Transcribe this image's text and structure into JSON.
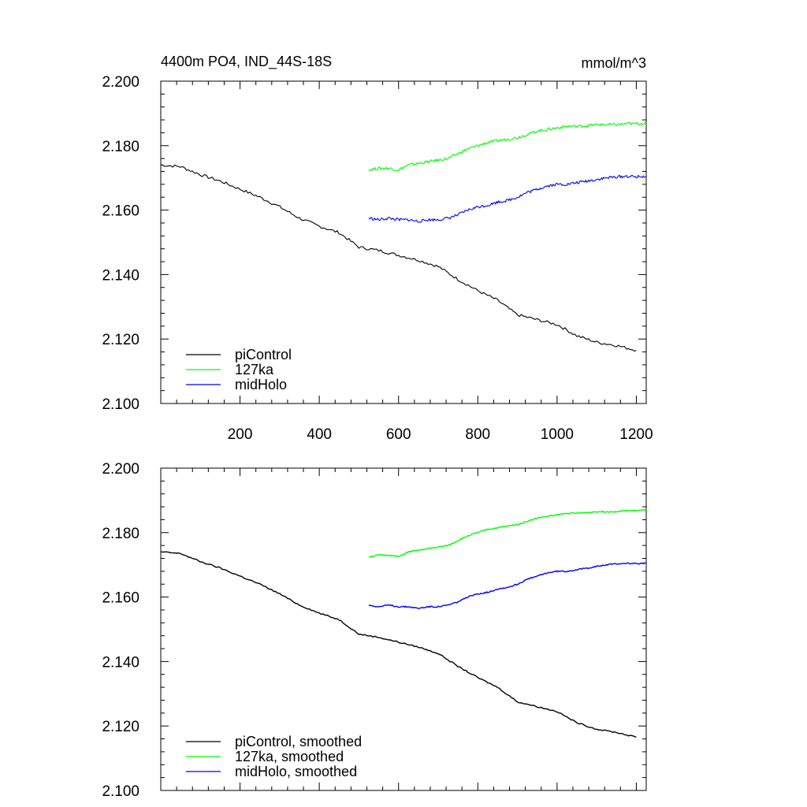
{
  "header": {
    "title": "4400m PO4, IND_44S-18S",
    "units": "mmol/m^3"
  },
  "colors": {
    "piControl": "#000000",
    "127ka": "#00ff00",
    "midHolo": "#0000ff",
    "axis": "#000000"
  },
  "chart_data": [
    {
      "type": "line",
      "panel": "top",
      "xlim": [
        0,
        1225
      ],
      "ylim": [
        2.1,
        2.2
      ],
      "x_ticks": [
        200,
        400,
        600,
        800,
        1000,
        1200
      ],
      "x_tick_labels": [
        "200",
        "400",
        "600",
        "800",
        "1000",
        "1200"
      ],
      "y_ticks": [
        2.1,
        2.12,
        2.14,
        2.16,
        2.18,
        2.2
      ],
      "y_tick_labels": [
        "2.100",
        "2.120",
        "2.140",
        "2.160",
        "2.180",
        "2.200"
      ],
      "grid": false,
      "legend_position": "bottom-left",
      "series": [
        {
          "name": "piControl",
          "color": "#000000",
          "x": [
            0,
            50,
            100,
            150,
            200,
            250,
            300,
            350,
            400,
            450,
            500,
            550,
            600,
            650,
            700,
            750,
            800,
            850,
            900,
            950,
            1000,
            1050,
            1100,
            1150,
            1200
          ],
          "y": [
            2.174,
            2.1735,
            2.171,
            2.169,
            2.1665,
            2.164,
            2.161,
            2.1575,
            2.155,
            2.153,
            2.1485,
            2.1475,
            2.146,
            2.1445,
            2.1425,
            2.1385,
            2.135,
            2.132,
            2.1275,
            2.126,
            2.1245,
            2.121,
            2.119,
            2.118,
            2.1165
          ]
        },
        {
          "name": "127ka",
          "color": "#00ff00",
          "x": [
            525,
            550,
            575,
            600,
            625,
            650,
            675,
            700,
            725,
            750,
            775,
            800,
            825,
            850,
            875,
            900,
            925,
            950,
            975,
            1000,
            1025,
            1050,
            1075,
            1100,
            1125,
            1150,
            1175,
            1200,
            1225
          ],
          "y": [
            2.1725,
            2.173,
            2.173,
            2.1725,
            2.174,
            2.1745,
            2.175,
            2.1755,
            2.176,
            2.1775,
            2.179,
            2.18,
            2.181,
            2.1815,
            2.182,
            2.1825,
            2.1835,
            2.1845,
            2.185,
            2.1855,
            2.186,
            2.186,
            2.1862,
            2.1865,
            2.1865,
            2.1865,
            2.1868,
            2.1868,
            2.187
          ]
        },
        {
          "name": "midHolo",
          "color": "#0000ff",
          "x": [
            525,
            550,
            575,
            600,
            625,
            650,
            675,
            700,
            725,
            750,
            775,
            800,
            825,
            850,
            875,
            900,
            925,
            950,
            975,
            1000,
            1025,
            1050,
            1075,
            1100,
            1125,
            1150,
            1175,
            1200,
            1225
          ],
          "y": [
            2.1575,
            2.157,
            2.1575,
            2.157,
            2.157,
            2.1565,
            2.157,
            2.157,
            2.1575,
            2.1585,
            2.16,
            2.161,
            2.1615,
            2.1625,
            2.163,
            2.164,
            2.1655,
            2.1665,
            2.1675,
            2.168,
            2.168,
            2.1685,
            2.169,
            2.1695,
            2.17,
            2.1703,
            2.1705,
            2.1703,
            2.1705
          ]
        }
      ]
    },
    {
      "type": "line",
      "panel": "bottom",
      "xlim": [
        0,
        1225
      ],
      "ylim": [
        2.1,
        2.2
      ],
      "x_ticks": [
        200,
        400,
        600,
        800,
        1000,
        1200
      ],
      "y_ticks": [
        2.1,
        2.12,
        2.14,
        2.16,
        2.18,
        2.2
      ],
      "y_tick_labels": [
        "2.100",
        "2.120",
        "2.140",
        "2.160",
        "2.180",
        "2.200"
      ],
      "grid": false,
      "legend_position": "bottom-left",
      "series": [
        {
          "name": "piControl, smoothed",
          "color": "#000000",
          "x": [
            0,
            50,
            100,
            150,
            200,
            250,
            300,
            350,
            400,
            450,
            500,
            550,
            600,
            650,
            700,
            750,
            800,
            850,
            900,
            950,
            1000,
            1050,
            1100,
            1150,
            1200
          ],
          "y": [
            2.174,
            2.1735,
            2.171,
            2.169,
            2.1665,
            2.164,
            2.161,
            2.1575,
            2.155,
            2.153,
            2.1485,
            2.1475,
            2.146,
            2.1445,
            2.1425,
            2.1385,
            2.135,
            2.132,
            2.1275,
            2.126,
            2.1245,
            2.121,
            2.119,
            2.118,
            2.1165
          ]
        },
        {
          "name": "127ka, smoothed",
          "color": "#00ff00",
          "x": [
            525,
            550,
            575,
            600,
            625,
            650,
            675,
            700,
            725,
            750,
            775,
            800,
            825,
            850,
            875,
            900,
            925,
            950,
            975,
            1000,
            1025,
            1050,
            1075,
            1100,
            1125,
            1150,
            1175,
            1200,
            1225
          ],
          "y": [
            2.1725,
            2.173,
            2.173,
            2.1725,
            2.174,
            2.1745,
            2.175,
            2.1755,
            2.176,
            2.1775,
            2.179,
            2.18,
            2.181,
            2.1815,
            2.182,
            2.1825,
            2.1835,
            2.1845,
            2.185,
            2.1855,
            2.186,
            2.186,
            2.1862,
            2.1865,
            2.1865,
            2.1865,
            2.1868,
            2.1868,
            2.187
          ]
        },
        {
          "name": "midHolo, smoothed",
          "color": "#0000ff",
          "x": [
            525,
            550,
            575,
            600,
            625,
            650,
            675,
            700,
            725,
            750,
            775,
            800,
            825,
            850,
            875,
            900,
            925,
            950,
            975,
            1000,
            1025,
            1050,
            1075,
            1100,
            1125,
            1150,
            1175,
            1200,
            1225
          ],
          "y": [
            2.1575,
            2.157,
            2.1575,
            2.157,
            2.157,
            2.1565,
            2.157,
            2.157,
            2.1575,
            2.1585,
            2.16,
            2.161,
            2.1615,
            2.1625,
            2.163,
            2.164,
            2.1655,
            2.1665,
            2.1675,
            2.168,
            2.168,
            2.1685,
            2.169,
            2.1695,
            2.17,
            2.1703,
            2.1705,
            2.1703,
            2.1705
          ]
        }
      ]
    }
  ]
}
